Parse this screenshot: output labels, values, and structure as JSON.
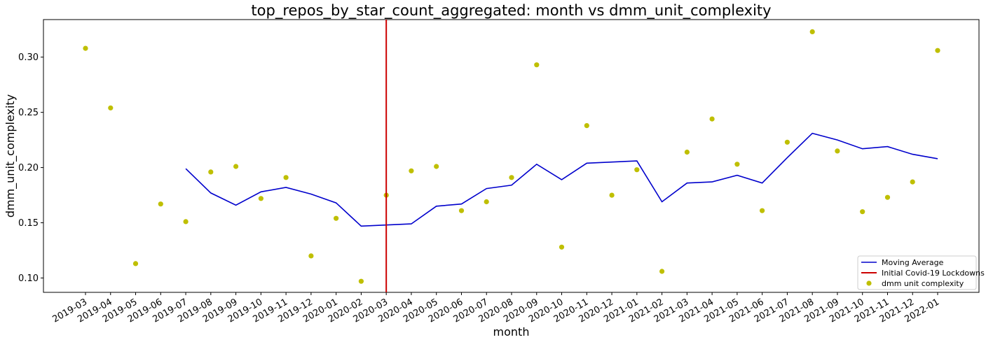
{
  "chart_data": {
    "type": "scatter",
    "title": "top_repos_by_star_count_aggregated: month vs dmm_unit_complexity",
    "xlabel": "month",
    "ylabel": "dmm_unit_complexity",
    "ylim": [
      0.087,
      0.334
    ],
    "yticks": [
      "0.10",
      "0.15",
      "0.20",
      "0.25",
      "0.30"
    ],
    "grid": false,
    "legend_placement": "bottom-right",
    "categories": [
      "2019-03",
      "2019-04",
      "2019-05",
      "2019-06",
      "2019-07",
      "2019-08",
      "2019-09",
      "2019-10",
      "2019-11",
      "2019-12",
      "2020-01",
      "2020-02",
      "2020-03",
      "2020-04",
      "2020-05",
      "2020-06",
      "2020-07",
      "2020-08",
      "2020-09",
      "2020-10",
      "2020-11",
      "2020-12",
      "2021-01",
      "2021-02",
      "2021-03",
      "2021-04",
      "2021-05",
      "2021-06",
      "2021-07",
      "2021-08",
      "2021-09",
      "2021-10",
      "2021-11",
      "2021-12",
      "2022-01"
    ],
    "series": [
      {
        "name": "Moving Average",
        "kind": "line",
        "color": "#0000cc",
        "values": [
          null,
          null,
          null,
          null,
          0.199,
          0.177,
          0.166,
          0.178,
          0.182,
          0.176,
          0.168,
          0.147,
          0.148,
          0.149,
          0.165,
          0.167,
          0.181,
          0.184,
          0.203,
          0.189,
          0.204,
          0.205,
          0.206,
          0.169,
          0.186,
          0.187,
          0.193,
          0.186,
          0.209,
          0.231,
          0.225,
          0.217,
          0.219,
          0.212,
          0.208
        ]
      },
      {
        "name": "Initial Covid-19 Lockdowns",
        "kind": "vline",
        "color": "#cc0000",
        "x": "2020-03"
      },
      {
        "name": "dmm unit complexity",
        "kind": "scatter",
        "color": "#bfbf00",
        "values": [
          0.308,
          0.254,
          0.113,
          0.167,
          0.151,
          0.196,
          0.201,
          0.172,
          0.191,
          0.12,
          0.154,
          0.097,
          0.175,
          0.197,
          0.201,
          0.161,
          0.169,
          0.191,
          0.293,
          0.128,
          0.238,
          0.175,
          0.198,
          0.106,
          0.214,
          0.244,
          0.203,
          0.161,
          0.223,
          0.323,
          0.215,
          0.16,
          0.173,
          0.187,
          0.306
        ]
      }
    ]
  }
}
